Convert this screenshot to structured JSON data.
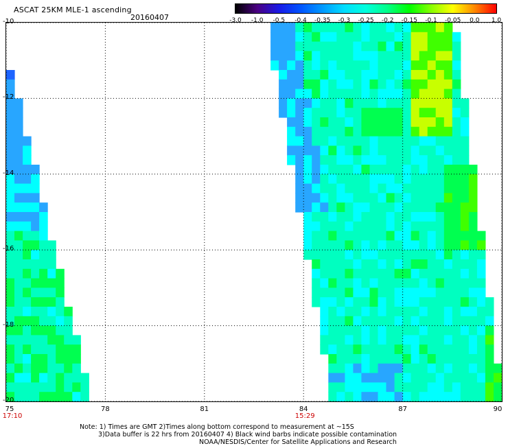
{
  "header": {
    "title": "ASCAT 25KM MLE-1 ascending",
    "date": "20160407"
  },
  "colorbar": {
    "labels": [
      "-3.0",
      "-1.0",
      "-0.5",
      "-0.4",
      "-0.35",
      "-0.3",
      "-0.25",
      "-0.2",
      "-0.15",
      "-0.1",
      "-0.05",
      "0.0",
      "1.0"
    ],
    "colors": [
      "#000000",
      "#4b0082",
      "#1a1ae6",
      "#0055ff",
      "#0099ff",
      "#00ddff",
      "#00ffdd",
      "#00ff88",
      "#00ff00",
      "#88ff00",
      "#ffff00",
      "#ff8800",
      "#ff0000"
    ]
  },
  "map": {
    "lat_range": [
      -20,
      -10
    ],
    "lon_range": [
      75,
      90
    ],
    "y_ticks": [
      "-10",
      "-12",
      "-14",
      "-16",
      "-18",
      "-20"
    ],
    "x_ticks": [
      "75",
      "78",
      "81",
      "84",
      "87",
      "90"
    ],
    "swath_times": [
      {
        "lon": 75,
        "label": "17:10"
      },
      {
        "lon": 84,
        "label": "15:29"
      }
    ],
    "swaths": [
      {
        "name": "west",
        "lon_edge_top": 75.0,
        "lon_edge_bottom": 77.5,
        "lat_start": -11.0
      },
      {
        "name": "east",
        "lon_west_top": 82.8,
        "lon_west_bottom": 84.8,
        "lon_east_top": 88.5,
        "lon_east_bottom": 89.9
      }
    ]
  },
  "notes": {
    "line1": "Note: 1) Times are GMT 2)Times along bottom correspond to measurement at ~15S",
    "line2": "3)Data buffer is 22 hrs from 20160407 4) Black wind barbs indicate possible contamination",
    "line3": "NOAA/NESDIS/Center for Satellite Applications and Research"
  }
}
